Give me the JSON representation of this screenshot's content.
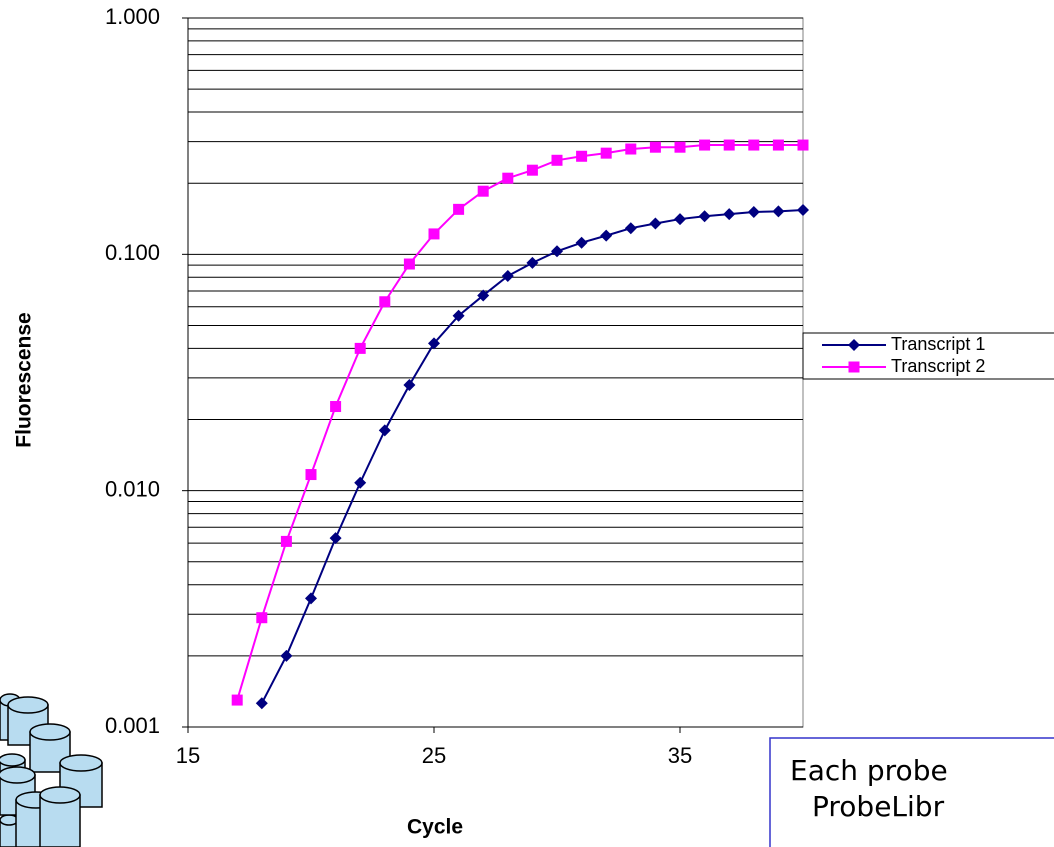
{
  "chart_data": {
    "type": "line",
    "x_label": "Cycle",
    "y_label": "Fluorescense",
    "log_y": true,
    "grid": true,
    "legend": "right",
    "xlim": [
      15,
      40
    ],
    "xticks": [
      15,
      25,
      35
    ],
    "ylim": [
      0.001,
      1
    ],
    "yticks": [
      {
        "value": 0.001,
        "label": "0.001"
      },
      {
        "value": 0.01,
        "label": "0.010"
      },
      {
        "value": 0.1,
        "label": "0.100"
      },
      {
        "value": 1,
        "label": "1.000"
      }
    ],
    "yminorticks": [
      0.002,
      0.003,
      0.004,
      0.005,
      0.006,
      0.007,
      0.008,
      0.009,
      0.02,
      0.03,
      0.04,
      0.05,
      0.06,
      0.07,
      0.08,
      0.09,
      0.2,
      0.3,
      0.4,
      0.5,
      0.6,
      0.7,
      0.8,
      0.9
    ],
    "series": [
      {
        "name": "Transcript 1",
        "color": "#000080",
        "marker": "diamond",
        "x": [
          18,
          19,
          20,
          21,
          22,
          23,
          24,
          25,
          26,
          27,
          28,
          29,
          30,
          31,
          32,
          33,
          34,
          35,
          36,
          37,
          38,
          39,
          40
        ],
        "values": [
          0.00126,
          0.002,
          0.0035,
          0.0063,
          0.0108,
          0.018,
          0.028,
          0.042,
          0.055,
          0.067,
          0.081,
          0.092,
          0.103,
          0.112,
          0.12,
          0.129,
          0.135,
          0.141,
          0.145,
          0.148,
          0.151,
          0.152,
          0.154
        ]
      },
      {
        "name": "Transcript 2",
        "color": "#ff00ff",
        "marker": "square",
        "x": [
          17,
          18,
          19,
          20,
          21,
          22,
          23,
          24,
          25,
          26,
          27,
          28,
          29,
          30,
          31,
          32,
          33,
          34,
          35,
          36,
          37,
          38,
          39,
          40
        ],
        "values": [
          0.0013,
          0.0029,
          0.0061,
          0.0117,
          0.0227,
          0.04,
          0.063,
          0.091,
          0.122,
          0.155,
          0.185,
          0.21,
          0.227,
          0.25,
          0.26,
          0.268,
          0.279,
          0.284,
          0.284,
          0.29,
          0.29,
          0.29,
          0.29,
          0.29
        ]
      }
    ]
  },
  "note": {
    "lines": [
      "Each probe",
      "ProbeLibr"
    ]
  }
}
